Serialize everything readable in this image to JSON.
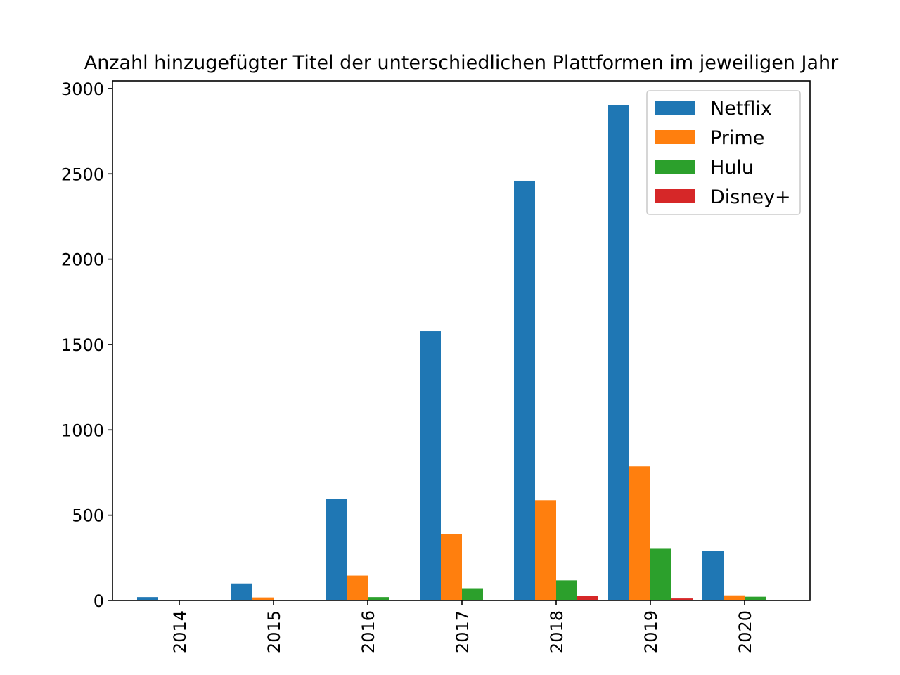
{
  "chart_data": {
    "type": "bar",
    "title": "Anzahl hinzugefügter Titel der unterschiedlichen Plattformen im jeweiligen Jahr",
    "xlabel": "",
    "ylabel": "",
    "categories": [
      "2014",
      "2015",
      "2016",
      "2017",
      "2018",
      "2019",
      "2020"
    ],
    "series": [
      {
        "name": "Netflix",
        "color": "#1f77b4",
        "values": [
          20,
          100,
          595,
          1578,
          2460,
          2903,
          290
        ]
      },
      {
        "name": "Prime",
        "color": "#ff7f0e",
        "values": [
          2,
          18,
          146,
          390,
          588,
          786,
          30
        ]
      },
      {
        "name": "Hulu",
        "color": "#2ca02c",
        "values": [
          0,
          0,
          20,
          72,
          118,
          303,
          22
        ]
      },
      {
        "name": "Disney+",
        "color": "#d62728",
        "values": [
          0,
          0,
          0,
          0,
          26,
          12,
          0
        ]
      }
    ],
    "yticks": [
      0,
      500,
      1000,
      1500,
      2000,
      2500,
      3000
    ],
    "ylim": [
      0,
      3045
    ],
    "grid": false,
    "legend_position": "top-right"
  }
}
